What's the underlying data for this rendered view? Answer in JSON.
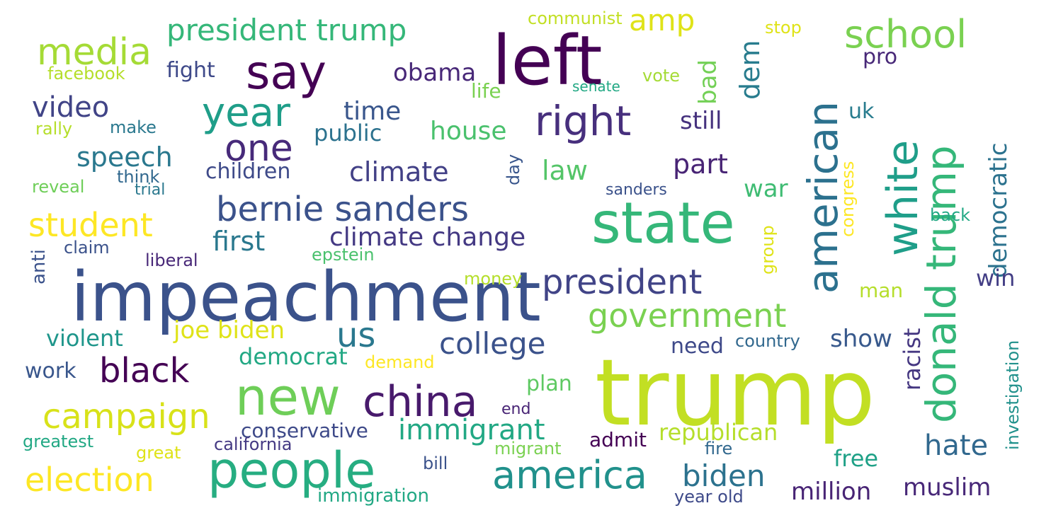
{
  "cloud": {
    "words": [
      {
        "text": "trump",
        "color": "#c2df23"
      },
      {
        "text": "impeachment",
        "color": "#3b528b"
      },
      {
        "text": "left",
        "color": "#440154"
      },
      {
        "text": "state",
        "color": "#35b779"
      },
      {
        "text": "new",
        "color": "#6ece58"
      },
      {
        "text": "people",
        "color": "#26ad81"
      },
      {
        "text": "say",
        "color": "#440154"
      },
      {
        "text": "china",
        "color": "#481a6c"
      },
      {
        "text": "american",
        "color": "#2c718e"
      },
      {
        "text": "white",
        "color": "#1f9e89"
      },
      {
        "text": "donald trump",
        "color": "#35b779"
      },
      {
        "text": "school",
        "color": "#7ad151"
      },
      {
        "text": "media",
        "color": "#a5db36"
      },
      {
        "text": "right",
        "color": "#472f7d"
      },
      {
        "text": "year",
        "color": "#1f9e89"
      },
      {
        "text": "one",
        "color": "#472a7a"
      },
      {
        "text": "bernie sanders",
        "color": "#3b528b"
      },
      {
        "text": "president",
        "color": "#414487"
      },
      {
        "text": "america",
        "color": "#21918c"
      },
      {
        "text": "government",
        "color": "#7ad151"
      },
      {
        "text": "black",
        "color": "#440154"
      },
      {
        "text": "campaign",
        "color": "#d8e219"
      },
      {
        "text": "election",
        "color": "#fde725"
      },
      {
        "text": "student",
        "color": "#fde725"
      },
      {
        "text": "president trump",
        "color": "#35b779"
      },
      {
        "text": "climate change",
        "color": "#443983"
      },
      {
        "text": "college",
        "color": "#3b528b"
      },
      {
        "text": "immigrant",
        "color": "#22a884"
      },
      {
        "text": "biden",
        "color": "#2c728e"
      },
      {
        "text": "us",
        "color": "#2a788e"
      },
      {
        "text": "climate",
        "color": "#424086"
      },
      {
        "text": "video",
        "color": "#414487"
      },
      {
        "text": "speech",
        "color": "#2a788e"
      },
      {
        "text": "obama",
        "color": "#482878"
      },
      {
        "text": "house",
        "color": "#4ac16d"
      },
      {
        "text": "republican",
        "color": "#b5de2b"
      },
      {
        "text": "hate",
        "color": "#31688e"
      },
      {
        "text": "muslim",
        "color": "#482878"
      },
      {
        "text": "million",
        "color": "#482475"
      },
      {
        "text": "joe biden",
        "color": "#dfe318"
      },
      {
        "text": "democratic",
        "color": "#2c728e"
      },
      {
        "text": "dem",
        "color": "#287c8e"
      },
      {
        "text": "amp",
        "color": "#dfe318"
      },
      {
        "text": "first",
        "color": "#2a788e"
      },
      {
        "text": "time",
        "color": "#39568c"
      },
      {
        "text": "children",
        "color": "#3e4a89"
      },
      {
        "text": "part",
        "color": "#482475"
      },
      {
        "text": "law",
        "color": "#54c568"
      },
      {
        "text": "war",
        "color": "#3fbc73"
      },
      {
        "text": "public",
        "color": "#2c728e"
      },
      {
        "text": "still",
        "color": "#46327e"
      },
      {
        "text": "show",
        "color": "#38598c"
      },
      {
        "text": "need",
        "color": "#3e4989"
      },
      {
        "text": "democrat",
        "color": "#22a884"
      },
      {
        "text": "violent",
        "color": "#1f968b"
      },
      {
        "text": "work",
        "color": "#39568c"
      },
      {
        "text": "plan",
        "color": "#5ec962"
      },
      {
        "text": "free",
        "color": "#1fa187"
      },
      {
        "text": "conservative",
        "color": "#3e4a89"
      },
      {
        "text": "bad",
        "color": "#73d056"
      },
      {
        "text": "racist",
        "color": "#453781"
      },
      {
        "text": "win",
        "color": "#433e85"
      },
      {
        "text": "man",
        "color": "#b5de2b"
      },
      {
        "text": "fight",
        "color": "#3e4989"
      },
      {
        "text": "life",
        "color": "#7ad151"
      },
      {
        "text": "pro",
        "color": "#482878"
      },
      {
        "text": "uk",
        "color": "#287c8e"
      },
      {
        "text": "facebook",
        "color": "#b5de2b"
      },
      {
        "text": "vote",
        "color": "#a5db36"
      },
      {
        "text": "senate",
        "color": "#22a884"
      },
      {
        "text": "communist",
        "color": "#c2df23"
      },
      {
        "text": "stop",
        "color": "#dfe318"
      },
      {
        "text": "rally",
        "color": "#b5de2b"
      },
      {
        "text": "make",
        "color": "#2a788e"
      },
      {
        "text": "think",
        "color": "#31688e"
      },
      {
        "text": "trial",
        "color": "#2a788e"
      },
      {
        "text": "reveal",
        "color": "#6ece58"
      },
      {
        "text": "day",
        "color": "#39568c"
      },
      {
        "text": "sanders",
        "color": "#3b528b"
      },
      {
        "text": "congress",
        "color": "#fde725"
      },
      {
        "text": "group",
        "color": "#dfe318"
      },
      {
        "text": "back",
        "color": "#22a884"
      },
      {
        "text": "claim",
        "color": "#3b528b"
      },
      {
        "text": "anti",
        "color": "#3b528b"
      },
      {
        "text": "liberal",
        "color": "#482878"
      },
      {
        "text": "epstein",
        "color": "#4ac16d"
      },
      {
        "text": "money",
        "color": "#b5de2b"
      },
      {
        "text": "country",
        "color": "#31688e"
      },
      {
        "text": "demand",
        "color": "#fde725"
      },
      {
        "text": "end",
        "color": "#482475"
      },
      {
        "text": "admit",
        "color": "#440154"
      },
      {
        "text": "greatest",
        "color": "#22a884"
      },
      {
        "text": "great",
        "color": "#dfe318"
      },
      {
        "text": "california",
        "color": "#443983"
      },
      {
        "text": "migrant",
        "color": "#7ad151"
      },
      {
        "text": "fire",
        "color": "#31688e"
      },
      {
        "text": "bill",
        "color": "#3b528b"
      },
      {
        "text": "immigration",
        "color": "#22a884"
      },
      {
        "text": "year old",
        "color": "#3e4a89"
      },
      {
        "text": "investigation",
        "color": "#21918c"
      }
    ]
  }
}
